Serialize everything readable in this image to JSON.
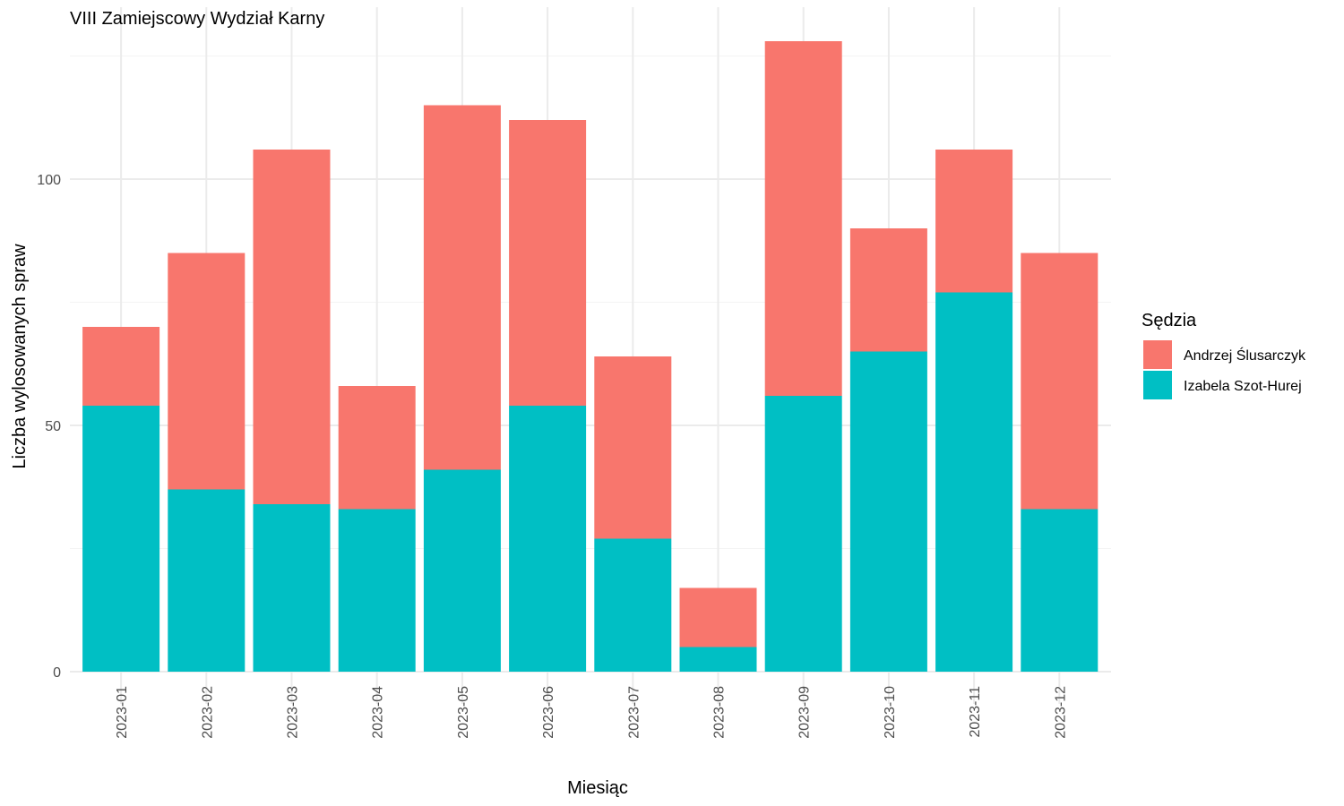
{
  "chart_data": {
    "type": "bar",
    "stacked": true,
    "title": "VIII Zamiejscowy Wydział Karny",
    "xlabel": "Miesiąc",
    "ylabel": "Liczba wylosowanych spraw",
    "ylim": [
      0,
      130
    ],
    "yticks": [
      0,
      50,
      100
    ],
    "grid": true,
    "legend": {
      "title": "Sędzia",
      "position": "right"
    },
    "categories": [
      "2023-01",
      "2023-02",
      "2023-03",
      "2023-04",
      "2023-05",
      "2023-06",
      "2023-07",
      "2023-08",
      "2023-09",
      "2023-10",
      "2023-11",
      "2023-12"
    ],
    "series": [
      {
        "name": "Andrzej Ślusarczyk",
        "color": "#F8766D",
        "values": [
          16,
          48,
          72,
          25,
          74,
          58,
          37,
          12,
          72,
          25,
          29,
          52
        ]
      },
      {
        "name": "Izabela Szot-Hurej",
        "color": "#00BFC4",
        "values": [
          54,
          37,
          34,
          33,
          41,
          54,
          27,
          5,
          56,
          65,
          77,
          33
        ]
      }
    ]
  }
}
